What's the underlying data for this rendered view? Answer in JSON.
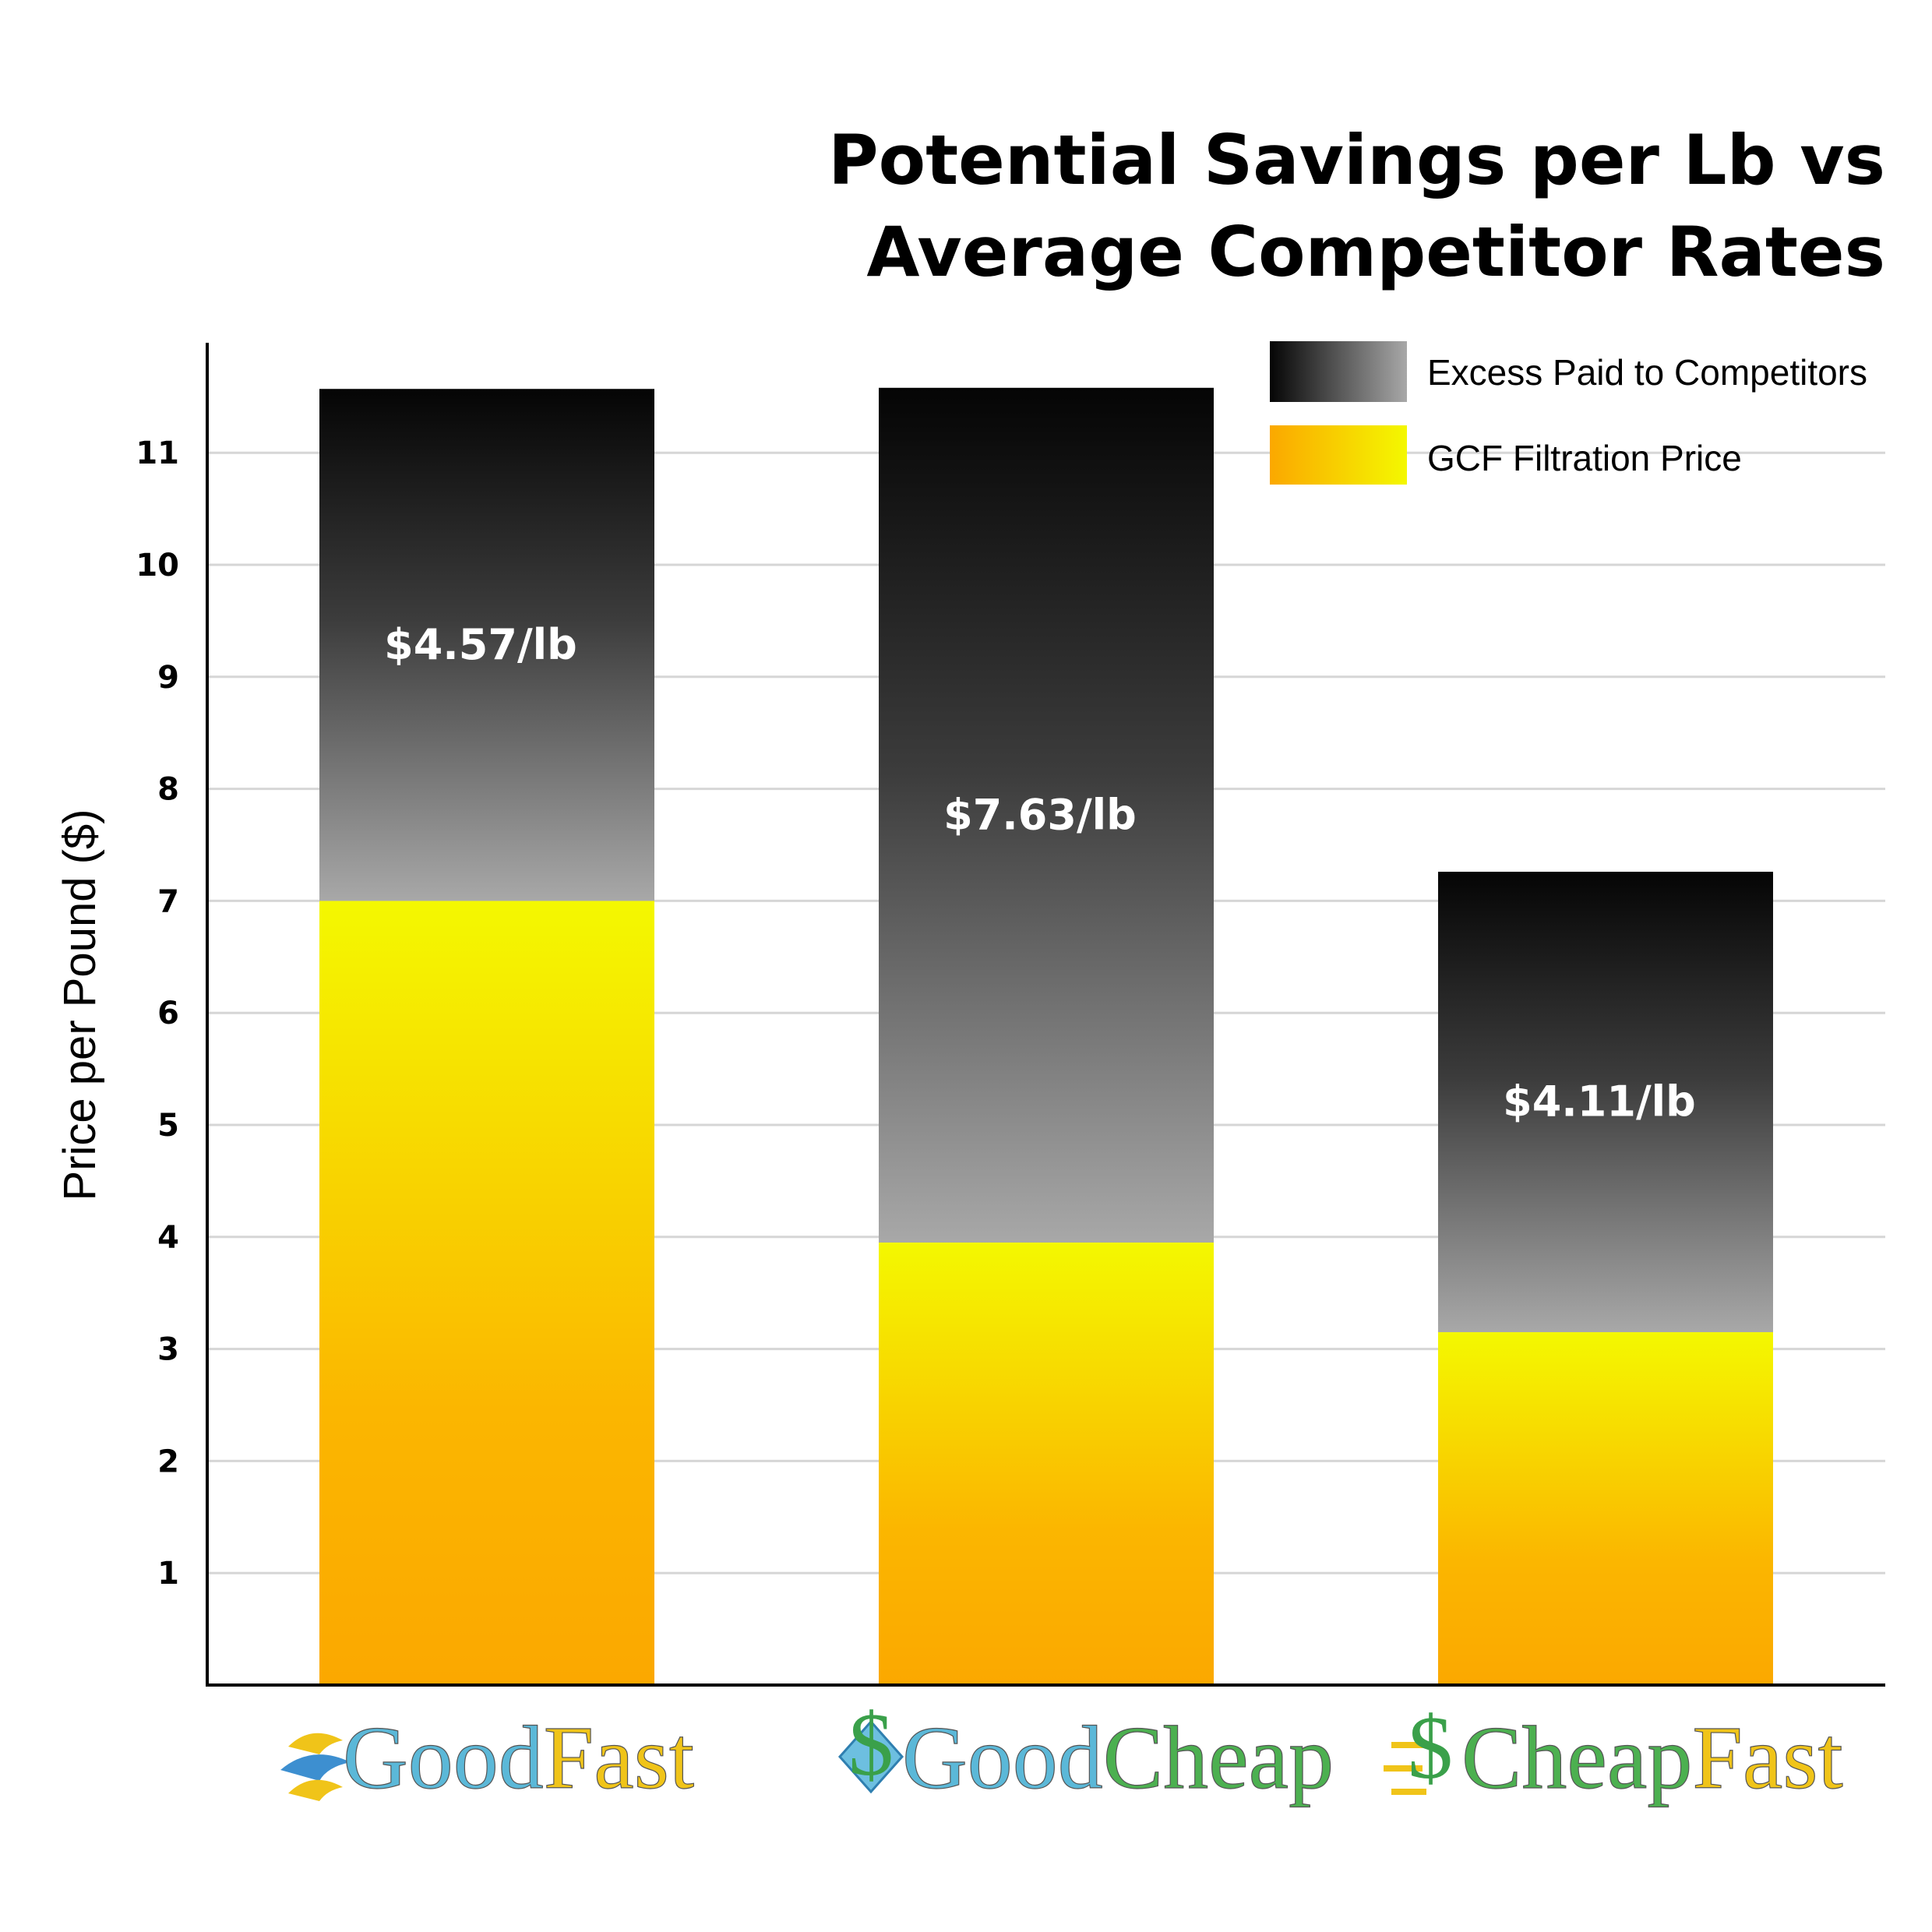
{
  "chart_data": {
    "type": "bar",
    "stacked": true,
    "title": [
      "Potential Savings per Lb vs",
      "Average Competitor Rates"
    ],
    "xlabel": "",
    "ylabel": "Price per Pound ($)",
    "ylim": [
      0,
      12
    ],
    "yticks": [
      1,
      2,
      3,
      4,
      5,
      6,
      7,
      8,
      9,
      10,
      11
    ],
    "grid": true,
    "legend_position": "top-right",
    "categories": [
      "GoodFast",
      "GoodCheap",
      "CheapFast"
    ],
    "category_logos": [
      {
        "parts": [
          "Good",
          "Fast"
        ],
        "colors": [
          "#5bb8d8",
          "#f0c419"
        ],
        "icon": "wave-icon"
      },
      {
        "parts": [
          "Good",
          "Cheap"
        ],
        "colors": [
          "#5bb8d8",
          "#4cb050"
        ],
        "icon": "dollar-diamond-icon"
      },
      {
        "parts": [
          "Cheap",
          "Fast"
        ],
        "colors": [
          "#4cb050",
          "#f0c419"
        ],
        "icon": "dollar-speed-icon"
      }
    ],
    "series": [
      {
        "name": "GCF Filtration Price",
        "values": [
          7.0,
          3.95,
          3.15
        ],
        "gradient": [
          "#fba800",
          "#f4f800"
        ]
      },
      {
        "name": "Excess Paid to Competitors",
        "values": [
          4.57,
          7.63,
          4.11
        ],
        "labels": [
          "$4.57/lb",
          "$7.63/lb",
          "$4.11/lb"
        ],
        "gradient": [
          "#a8a8a8",
          "#050505"
        ]
      }
    ]
  }
}
